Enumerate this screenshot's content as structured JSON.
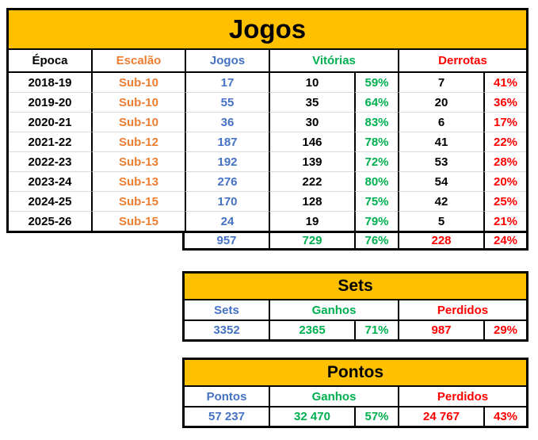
{
  "colors": {
    "gold": "#FFC000",
    "blue": "#4472C4",
    "green": "#00B050",
    "red": "#FF0000",
    "orange": "#ED7D31",
    "black": "#000000",
    "rowline": "#D9D9D9"
  },
  "jogos_table": {
    "title": "Jogos",
    "headers": {
      "epoca": "Época",
      "escalao": "Escalão",
      "jogos": "Jogos",
      "vitorias": "Vitórias",
      "derrotas": "Derrotas"
    },
    "rows": [
      {
        "epoca": "2018-19",
        "escalao": "Sub-10",
        "jogos": "17",
        "vitorias": "10",
        "vitorias_pct": "59%",
        "derrotas": "7",
        "derrotas_pct": "41%"
      },
      {
        "epoca": "2019-20",
        "escalao": "Sub-10",
        "jogos": "55",
        "vitorias": "35",
        "vitorias_pct": "64%",
        "derrotas": "20",
        "derrotas_pct": "36%"
      },
      {
        "epoca": "2020-21",
        "escalao": "Sub-10",
        "jogos": "36",
        "vitorias": "30",
        "vitorias_pct": "83%",
        "derrotas": "6",
        "derrotas_pct": "17%"
      },
      {
        "epoca": "2021-22",
        "escalao": "Sub-12",
        "jogos": "187",
        "vitorias": "146",
        "vitorias_pct": "78%",
        "derrotas": "41",
        "derrotas_pct": "22%"
      },
      {
        "epoca": "2022-23",
        "escalao": "Sub-13",
        "jogos": "192",
        "vitorias": "139",
        "vitorias_pct": "72%",
        "derrotas": "53",
        "derrotas_pct": "28%"
      },
      {
        "epoca": "2023-24",
        "escalao": "Sub-13",
        "jogos": "276",
        "vitorias": "222",
        "vitorias_pct": "80%",
        "derrotas": "54",
        "derrotas_pct": "20%"
      },
      {
        "epoca": "2024-25",
        "escalao": "Sub-15",
        "jogos": "170",
        "vitorias": "128",
        "vitorias_pct": "75%",
        "derrotas": "42",
        "derrotas_pct": "25%"
      },
      {
        "epoca": "2025-26",
        "escalao": "Sub-15",
        "jogos": "24",
        "vitorias": "19",
        "vitorias_pct": "79%",
        "derrotas": "5",
        "derrotas_pct": "21%"
      }
    ],
    "totals": {
      "jogos": "957",
      "vitorias": "729",
      "vitorias_pct": "76%",
      "derrotas": "228",
      "derrotas_pct": "24%"
    }
  },
  "sets_table": {
    "title": "Sets",
    "headers": {
      "sets": "Sets",
      "ganhos": "Ganhos",
      "perdidos": "Perdidos"
    },
    "row": {
      "sets": "3352",
      "ganhos": "2365",
      "ganhos_pct": "71%",
      "perdidos": "987",
      "perdidos_pct": "29%"
    }
  },
  "pontos_table": {
    "title": "Pontos",
    "headers": {
      "pontos": "Pontos",
      "ganhos": "Ganhos",
      "perdidos": "Perdidos"
    },
    "row": {
      "pontos": "57 237",
      "ganhos": "32 470",
      "ganhos_pct": "57%",
      "perdidos": "24 767",
      "perdidos_pct": "43%"
    }
  }
}
